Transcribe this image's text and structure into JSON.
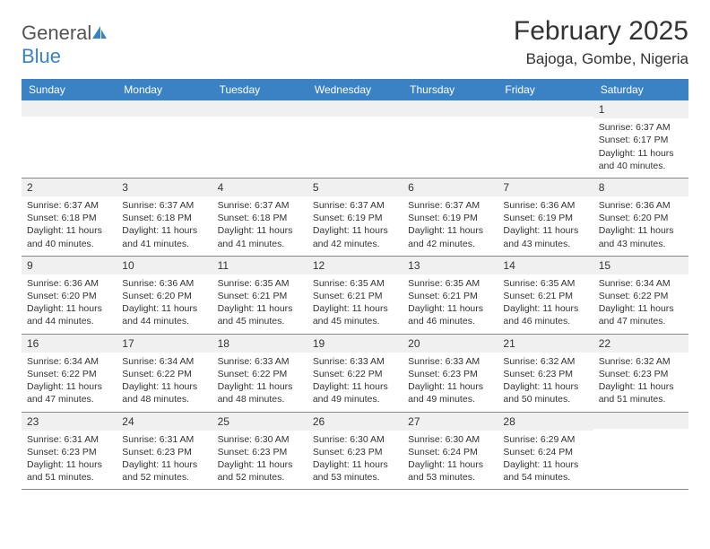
{
  "logo": {
    "text_general": "General",
    "text_blue": "Blue",
    "icon_color": "#3b82c4"
  },
  "header": {
    "month_title": "February 2025",
    "location": "Bajoga, Gombe, Nigeria"
  },
  "colors": {
    "header_bg": "#3b82c4",
    "header_text": "#ffffff",
    "daynum_bg": "#f0f0f0",
    "border": "#888888",
    "text": "#333333",
    "page_bg": "#ffffff"
  },
  "weekdays": [
    "Sunday",
    "Monday",
    "Tuesday",
    "Wednesday",
    "Thursday",
    "Friday",
    "Saturday"
  ],
  "cells": [
    {
      "day": "",
      "sunrise": "",
      "sunset": "",
      "daylight": ""
    },
    {
      "day": "",
      "sunrise": "",
      "sunset": "",
      "daylight": ""
    },
    {
      "day": "",
      "sunrise": "",
      "sunset": "",
      "daylight": ""
    },
    {
      "day": "",
      "sunrise": "",
      "sunset": "",
      "daylight": ""
    },
    {
      "day": "",
      "sunrise": "",
      "sunset": "",
      "daylight": ""
    },
    {
      "day": "",
      "sunrise": "",
      "sunset": "",
      "daylight": ""
    },
    {
      "day": "1",
      "sunrise": "Sunrise: 6:37 AM",
      "sunset": "Sunset: 6:17 PM",
      "daylight": "Daylight: 11 hours and 40 minutes."
    },
    {
      "day": "2",
      "sunrise": "Sunrise: 6:37 AM",
      "sunset": "Sunset: 6:18 PM",
      "daylight": "Daylight: 11 hours and 40 minutes."
    },
    {
      "day": "3",
      "sunrise": "Sunrise: 6:37 AM",
      "sunset": "Sunset: 6:18 PM",
      "daylight": "Daylight: 11 hours and 41 minutes."
    },
    {
      "day": "4",
      "sunrise": "Sunrise: 6:37 AM",
      "sunset": "Sunset: 6:18 PM",
      "daylight": "Daylight: 11 hours and 41 minutes."
    },
    {
      "day": "5",
      "sunrise": "Sunrise: 6:37 AM",
      "sunset": "Sunset: 6:19 PM",
      "daylight": "Daylight: 11 hours and 42 minutes."
    },
    {
      "day": "6",
      "sunrise": "Sunrise: 6:37 AM",
      "sunset": "Sunset: 6:19 PM",
      "daylight": "Daylight: 11 hours and 42 minutes."
    },
    {
      "day": "7",
      "sunrise": "Sunrise: 6:36 AM",
      "sunset": "Sunset: 6:19 PM",
      "daylight": "Daylight: 11 hours and 43 minutes."
    },
    {
      "day": "8",
      "sunrise": "Sunrise: 6:36 AM",
      "sunset": "Sunset: 6:20 PM",
      "daylight": "Daylight: 11 hours and 43 minutes."
    },
    {
      "day": "9",
      "sunrise": "Sunrise: 6:36 AM",
      "sunset": "Sunset: 6:20 PM",
      "daylight": "Daylight: 11 hours and 44 minutes."
    },
    {
      "day": "10",
      "sunrise": "Sunrise: 6:36 AM",
      "sunset": "Sunset: 6:20 PM",
      "daylight": "Daylight: 11 hours and 44 minutes."
    },
    {
      "day": "11",
      "sunrise": "Sunrise: 6:35 AM",
      "sunset": "Sunset: 6:21 PM",
      "daylight": "Daylight: 11 hours and 45 minutes."
    },
    {
      "day": "12",
      "sunrise": "Sunrise: 6:35 AM",
      "sunset": "Sunset: 6:21 PM",
      "daylight": "Daylight: 11 hours and 45 minutes."
    },
    {
      "day": "13",
      "sunrise": "Sunrise: 6:35 AM",
      "sunset": "Sunset: 6:21 PM",
      "daylight": "Daylight: 11 hours and 46 minutes."
    },
    {
      "day": "14",
      "sunrise": "Sunrise: 6:35 AM",
      "sunset": "Sunset: 6:21 PM",
      "daylight": "Daylight: 11 hours and 46 minutes."
    },
    {
      "day": "15",
      "sunrise": "Sunrise: 6:34 AM",
      "sunset": "Sunset: 6:22 PM",
      "daylight": "Daylight: 11 hours and 47 minutes."
    },
    {
      "day": "16",
      "sunrise": "Sunrise: 6:34 AM",
      "sunset": "Sunset: 6:22 PM",
      "daylight": "Daylight: 11 hours and 47 minutes."
    },
    {
      "day": "17",
      "sunrise": "Sunrise: 6:34 AM",
      "sunset": "Sunset: 6:22 PM",
      "daylight": "Daylight: 11 hours and 48 minutes."
    },
    {
      "day": "18",
      "sunrise": "Sunrise: 6:33 AM",
      "sunset": "Sunset: 6:22 PM",
      "daylight": "Daylight: 11 hours and 48 minutes."
    },
    {
      "day": "19",
      "sunrise": "Sunrise: 6:33 AM",
      "sunset": "Sunset: 6:22 PM",
      "daylight": "Daylight: 11 hours and 49 minutes."
    },
    {
      "day": "20",
      "sunrise": "Sunrise: 6:33 AM",
      "sunset": "Sunset: 6:23 PM",
      "daylight": "Daylight: 11 hours and 49 minutes."
    },
    {
      "day": "21",
      "sunrise": "Sunrise: 6:32 AM",
      "sunset": "Sunset: 6:23 PM",
      "daylight": "Daylight: 11 hours and 50 minutes."
    },
    {
      "day": "22",
      "sunrise": "Sunrise: 6:32 AM",
      "sunset": "Sunset: 6:23 PM",
      "daylight": "Daylight: 11 hours and 51 minutes."
    },
    {
      "day": "23",
      "sunrise": "Sunrise: 6:31 AM",
      "sunset": "Sunset: 6:23 PM",
      "daylight": "Daylight: 11 hours and 51 minutes."
    },
    {
      "day": "24",
      "sunrise": "Sunrise: 6:31 AM",
      "sunset": "Sunset: 6:23 PM",
      "daylight": "Daylight: 11 hours and 52 minutes."
    },
    {
      "day": "25",
      "sunrise": "Sunrise: 6:30 AM",
      "sunset": "Sunset: 6:23 PM",
      "daylight": "Daylight: 11 hours and 52 minutes."
    },
    {
      "day": "26",
      "sunrise": "Sunrise: 6:30 AM",
      "sunset": "Sunset: 6:23 PM",
      "daylight": "Daylight: 11 hours and 53 minutes."
    },
    {
      "day": "27",
      "sunrise": "Sunrise: 6:30 AM",
      "sunset": "Sunset: 6:24 PM",
      "daylight": "Daylight: 11 hours and 53 minutes."
    },
    {
      "day": "28",
      "sunrise": "Sunrise: 6:29 AM",
      "sunset": "Sunset: 6:24 PM",
      "daylight": "Daylight: 11 hours and 54 minutes."
    },
    {
      "day": "",
      "sunrise": "",
      "sunset": "",
      "daylight": ""
    }
  ]
}
